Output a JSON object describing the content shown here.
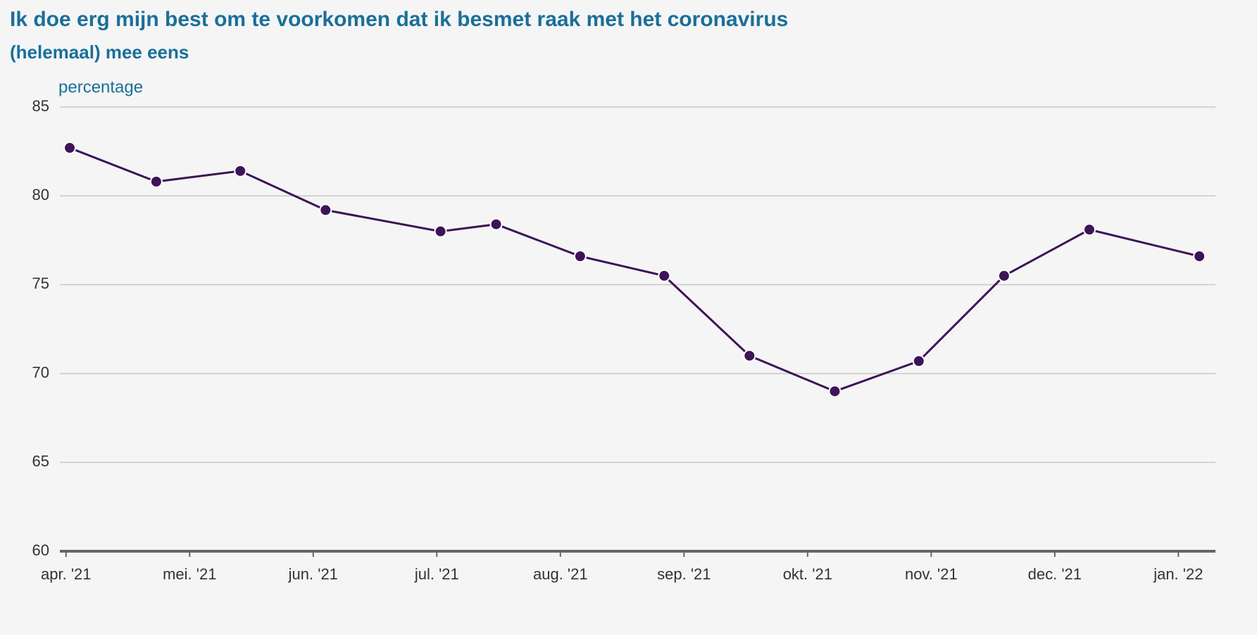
{
  "chart_data": {
    "type": "line",
    "title": "Ik doe erg mijn best om te voorkomen dat ik besmet raak met het coronavirus",
    "subtitle": "(helemaal) mee eens",
    "y_label": "percentage",
    "x": [
      0.03,
      0.73,
      1.41,
      2.1,
      3.03,
      3.48,
      4.16,
      4.84,
      5.53,
      6.22,
      6.9,
      7.59,
      8.28,
      9.17
    ],
    "series": [
      {
        "color": "#3d1458",
        "values": [
          82.7,
          80.8,
          81.4,
          79.2,
          78.0,
          78.4,
          76.6,
          75.5,
          71.0,
          69.0,
          70.7,
          75.5,
          78.1,
          76.6
        ]
      }
    ],
    "xlim": [
      -0.05,
      9.3
    ],
    "xticks": [
      {
        "value": 0,
        "label": "apr. '21"
      },
      {
        "value": 1,
        "label": "mei. '21"
      },
      {
        "value": 2,
        "label": "jun. '21"
      },
      {
        "value": 3,
        "label": "jul. '21"
      },
      {
        "value": 4,
        "label": "aug. '21"
      },
      {
        "value": 5,
        "label": "sep. '21"
      },
      {
        "value": 6,
        "label": "okt. '21"
      },
      {
        "value": 7,
        "label": "nov. '21"
      },
      {
        "value": 8,
        "label": "dec. '21"
      },
      {
        "value": 9,
        "label": "jan. '22"
      }
    ],
    "ylim": [
      60,
      85
    ],
    "yticks": [
      60,
      65,
      70,
      75,
      80,
      85
    ],
    "grid": true
  }
}
